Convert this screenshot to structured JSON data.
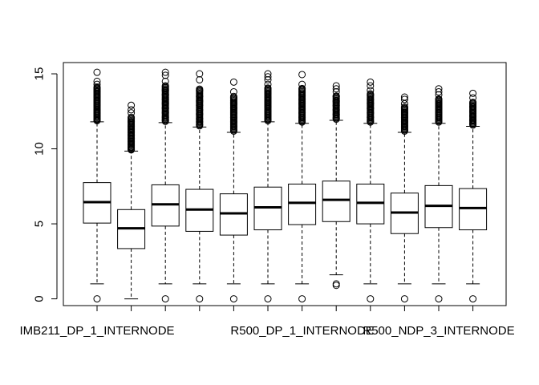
{
  "chart_data": {
    "type": "boxplot",
    "title": "",
    "xlabel": "",
    "ylabel": "",
    "ylim": [
      -0.45,
      15.75
    ],
    "y_ticks": [
      0,
      5,
      10,
      15
    ],
    "y_tick_labels": [
      "0",
      "5",
      "10",
      "15"
    ],
    "x_tick_labels": [
      {
        "box_index": 0,
        "text": "IMB211_DP_1_INTERNODE"
      },
      {
        "box_index": 6,
        "text": "R500_DP_1_INTERNODE"
      },
      {
        "box_index": 10,
        "text": "R500_NDP_3_INTERNODE"
      }
    ],
    "colors": {
      "box_fill": "#ffffff",
      "stroke": "#000000"
    },
    "boxes": [
      {
        "q1": 5.05,
        "median": 6.45,
        "q3": 7.75,
        "whisker_low": 1.0,
        "whisker_high": 11.8,
        "outliers": [
          0,
          11.9,
          12.0,
          12.2,
          12.4,
          12.6,
          12.9,
          13.2,
          13.5,
          13.8,
          14.0,
          14.3,
          14.5,
          15.1
        ]
      },
      {
        "q1": 3.35,
        "median": 4.7,
        "q3": 5.95,
        "whisker_low": 0.0,
        "whisker_high": 9.85,
        "outliers": [
          9.95,
          10.1,
          10.3,
          10.5,
          10.7,
          10.9,
          11.1,
          11.3,
          11.5,
          11.8,
          12.1,
          12.4,
          12.6,
          12.9
        ]
      },
      {
        "q1": 4.85,
        "median": 6.3,
        "q3": 7.6,
        "whisker_low": 1.0,
        "whisker_high": 11.75,
        "outliers": [
          0,
          11.9,
          12.1,
          12.4,
          12.7,
          13.0,
          13.3,
          13.6,
          13.9,
          14.2,
          14.5,
          14.9,
          15.1
        ]
      },
      {
        "q1": 4.5,
        "median": 5.95,
        "q3": 7.3,
        "whisker_low": 1.0,
        "whisker_high": 11.45,
        "outliers": [
          0,
          11.6,
          11.8,
          12.0,
          12.3,
          12.6,
          12.9,
          13.2,
          13.5,
          13.9,
          14.6,
          15.0
        ]
      },
      {
        "q1": 4.25,
        "median": 5.7,
        "q3": 7.0,
        "whisker_low": 1.0,
        "whisker_high": 11.1,
        "outliers": [
          0,
          11.25,
          11.5,
          11.8,
          12.1,
          12.4,
          12.7,
          13.0,
          13.4,
          13.8,
          14.45
        ]
      },
      {
        "q1": 4.6,
        "median": 6.1,
        "q3": 7.45,
        "whisker_low": 1.0,
        "whisker_high": 11.8,
        "outliers": [
          0,
          11.95,
          12.2,
          12.5,
          12.8,
          13.1,
          13.4,
          13.7,
          14.0,
          14.3,
          14.6,
          14.8,
          15.0
        ]
      },
      {
        "q1": 4.95,
        "median": 6.4,
        "q3": 7.65,
        "whisker_low": 1.0,
        "whisker_high": 11.7,
        "outliers": [
          0,
          11.85,
          12.1,
          12.4,
          12.7,
          13.0,
          13.3,
          13.6,
          14.0,
          14.3,
          14.95
        ]
      },
      {
        "q1": 5.15,
        "median": 6.6,
        "q3": 7.85,
        "whisker_low": 1.6,
        "whisker_high": 11.9,
        "outliers": [
          0.9,
          1.0,
          12.05,
          12.3,
          12.6,
          12.9,
          13.2,
          13.5,
          13.8,
          14.0,
          14.2
        ]
      },
      {
        "q1": 5.0,
        "median": 6.4,
        "q3": 7.65,
        "whisker_low": 1.0,
        "whisker_high": 11.7,
        "outliers": [
          0,
          11.85,
          12.1,
          12.4,
          12.7,
          13.0,
          13.3,
          13.6,
          13.9,
          14.2,
          14.45
        ]
      },
      {
        "q1": 4.35,
        "median": 5.75,
        "q3": 7.05,
        "whisker_low": 1.0,
        "whisker_high": 11.1,
        "outliers": [
          0,
          11.25,
          11.5,
          11.8,
          12.1,
          12.4,
          12.7,
          13.0,
          13.3,
          13.45
        ]
      },
      {
        "q1": 4.75,
        "median": 6.2,
        "q3": 7.55,
        "whisker_low": 1.0,
        "whisker_high": 11.7,
        "outliers": [
          0,
          11.85,
          12.1,
          12.4,
          12.7,
          13.0,
          13.3,
          13.6,
          13.8,
          14.0
        ]
      },
      {
        "q1": 4.6,
        "median": 6.05,
        "q3": 7.35,
        "whisker_low": 1.0,
        "whisker_high": 11.5,
        "outliers": [
          0,
          11.65,
          11.9,
          12.2,
          12.5,
          12.8,
          13.1,
          13.4,
          13.7
        ]
      }
    ]
  }
}
